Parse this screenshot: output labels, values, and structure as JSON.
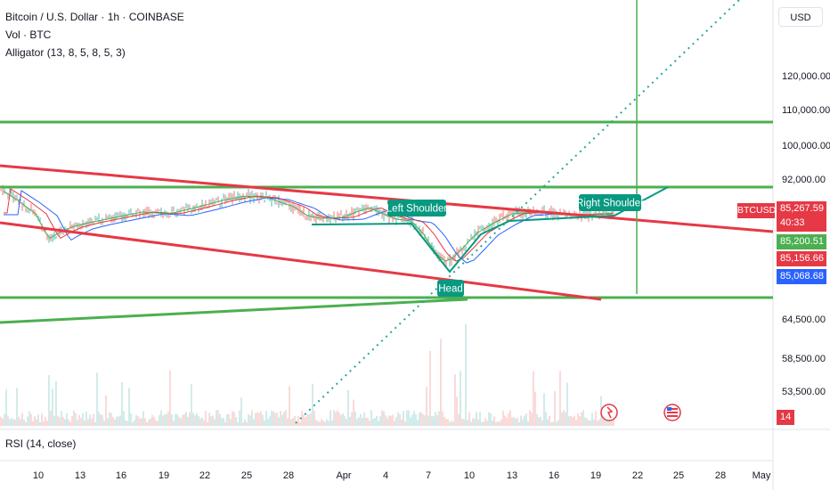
{
  "header": {
    "title": "Bitcoin / U.S. Dollar · 1h · COINBASE",
    "volume": "Vol · BTC",
    "indicator": "Alligator (13, 8, 5, 8, 5, 3)"
  },
  "currency": "USD",
  "colors": {
    "support_resistance": "#4caf50",
    "channel": "#e53945",
    "pattern": "#089981",
    "trend_dotted": "#26a69a",
    "last_price_bg": "#e53945",
    "ma_green_bg": "#4caf50",
    "ma_red_bg": "#e53945",
    "ma_blue_bg": "#2962ff"
  },
  "chart_data": {
    "type": "line",
    "symbol_tag": "BTCUSD",
    "y_ticks": [
      "120,000.00",
      "110,000.00",
      "100,000.00",
      "92,000.00",
      "64,500.00",
      "58,500.00",
      "53,500.00"
    ],
    "x_ticks": [
      "10",
      "13",
      "16",
      "19",
      "22",
      "25",
      "28",
      "Apr",
      "4",
      "7",
      "10",
      "13",
      "16",
      "19",
      "22",
      "25",
      "28",
      "May"
    ],
    "price_labels": {
      "last": "85,267.59",
      "countdown": "40:33",
      "green": "85,200.51",
      "red": "85,156.66",
      "blue": "85,068.68",
      "rsi": "14"
    },
    "annotations": [
      "Left Shoulder",
      "Head",
      "Right Shoulder"
    ],
    "rsi_label": "RSI (14, close)"
  }
}
